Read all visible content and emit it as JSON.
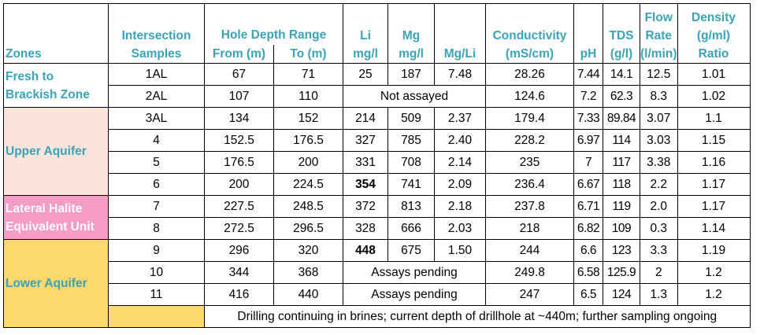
{
  "headers": {
    "zones": "Zones",
    "intersection_l1": "Intersection",
    "intersection_l2": "Samples",
    "depth_group": "Hole Depth Range",
    "from": "From (m)",
    "to": "To (m)",
    "li_l1": "Li",
    "li_l2": "mg/l",
    "mg_l1": "Mg",
    "mg_l2": "mg/l",
    "mgli": "Mg/Li",
    "cond_l1": "Conductivity",
    "cond_l2": "(mS/cm)",
    "ph": "pH",
    "tds_l1": "TDS",
    "tds_l2": "(g/l)",
    "flow_l1": "Flow",
    "flow_l2": "Rate",
    "flow_l3": "(l/min)",
    "dens_l1": "Density",
    "dens_l2": "(g/ml)",
    "dens_l3": "Ratio"
  },
  "zones": {
    "fresh": "Fresh to Brackish Zone",
    "upper": "Upper Aquifer",
    "lateral": "Lateral Halite Equivalent Unit",
    "lower": "Lower Aquifer"
  },
  "rows": [
    {
      "sample": "1AL",
      "from": "67",
      "to": "71",
      "li": "25",
      "mg": "187",
      "mgli": "7.48",
      "cond": "28.26",
      "ph": "7.44",
      "tds": "14.1",
      "flow": "12.5",
      "dens": "1.01"
    },
    {
      "sample": "2AL",
      "from": "107",
      "to": "110",
      "note": "Not assayed",
      "cond": "124.6",
      "ph": "7.2",
      "tds": "62.3",
      "flow": "8.3",
      "dens": "1.02"
    },
    {
      "sample": "3AL",
      "from": "134",
      "to": "152",
      "li": "214",
      "mg": "509",
      "mgli": "2.37",
      "cond": "179.4",
      "ph": "7.33",
      "tds": "89.84",
      "flow": "3.07",
      "dens": "1.1"
    },
    {
      "sample": "4",
      "from": "152.5",
      "to": "176.5",
      "li": "327",
      "mg": "785",
      "mgli": "2.40",
      "cond": "228.2",
      "ph": "6.97",
      "tds": "114",
      "flow": "3.03",
      "dens": "1.15"
    },
    {
      "sample": "5",
      "from": "176.5",
      "to": "200",
      "li": "331",
      "mg": "708",
      "mgli": "2.14",
      "cond": "235",
      "ph": "7",
      "tds": "117",
      "flow": "3.38",
      "dens": "1.16"
    },
    {
      "sample": "6",
      "from": "200",
      "to": "224.5",
      "li": "354",
      "mg": "741",
      "mgli": "2.09",
      "cond": "236.4",
      "ph": "6.67",
      "tds": "118",
      "flow": "2.2",
      "dens": "1.17"
    },
    {
      "sample": "7",
      "from": "227.5",
      "to": "248.5",
      "li": "372",
      "mg": "813",
      "mgli": "2.18",
      "cond": "237.8",
      "ph": "6.71",
      "tds": "119",
      "flow": "2.0",
      "dens": "1.17"
    },
    {
      "sample": "8",
      "from": "272.5",
      "to": "296.5",
      "li": "328",
      "mg": "666",
      "mgli": "2.03",
      "cond": "218",
      "ph": "6.82",
      "tds": "109",
      "flow": "0.3",
      "dens": "1.14"
    },
    {
      "sample": "9",
      "from": "296",
      "to": "320",
      "li": "448",
      "mg": "675",
      "mgli": "1.50",
      "cond": "244",
      "ph": "6.6",
      "tds": "123",
      "flow": "3.3",
      "dens": "1.19"
    },
    {
      "sample": "10",
      "from": "344",
      "to": "368",
      "note": "Assays pending",
      "cond": "249.8",
      "ph": "6.58",
      "tds": "125.9",
      "flow": "2",
      "dens": "1.2"
    },
    {
      "sample": "11",
      "from": "416",
      "to": "440",
      "note": "Assays pending",
      "cond": "247",
      "ph": "6.5",
      "tds": "124",
      "flow": "1.3",
      "dens": "1.2"
    }
  ],
  "footer": "Drilling continuing in brines; current depth of drillhole at ~440m; further sampling ongoing"
}
